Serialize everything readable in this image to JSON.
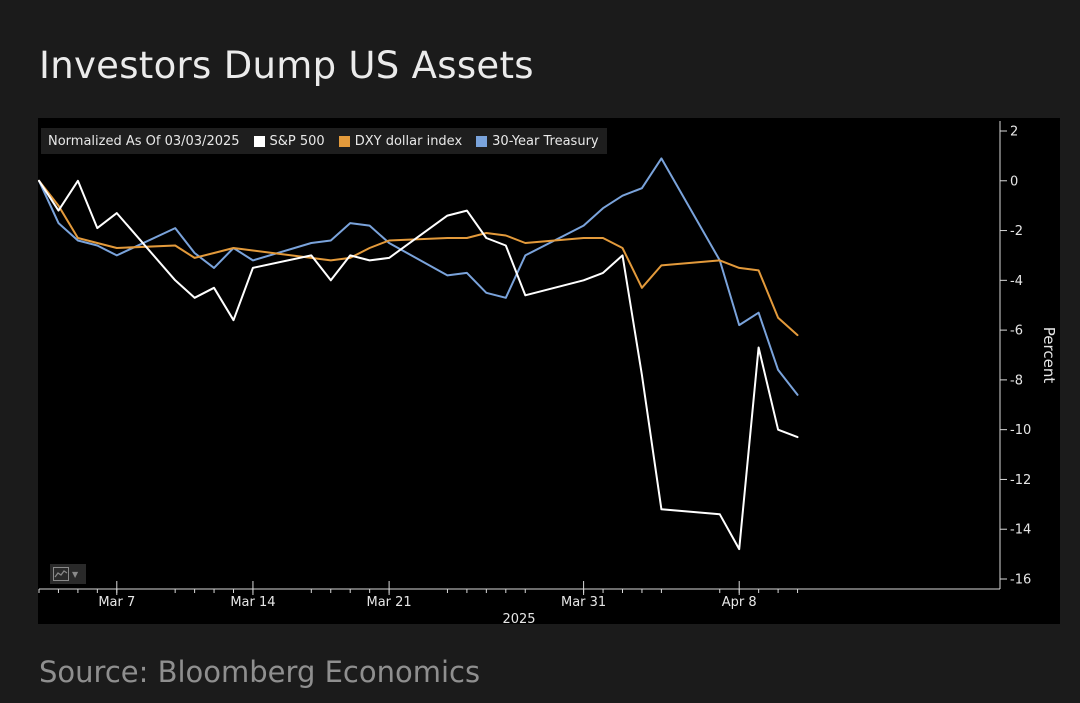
{
  "title": "Investors Dump US Assets",
  "source": "Source: Bloomberg Economics",
  "legend": {
    "note": "Normalized As Of 03/03/2025"
  },
  "toolbar": {
    "chart_type_icon": "line-chart-icon"
  },
  "colors": {
    "background": "#1b1b1b",
    "panel": "#000000",
    "sp500": "#ffffff",
    "dxy": "#e39a3b",
    "treasury": "#7aa3db",
    "axis": "#d9d9d9"
  },
  "chart_data": {
    "type": "line",
    "title": "Investors Dump US Assets",
    "xlabel": "2025",
    "ylabel": "Percent",
    "ylim": [
      -16,
      2
    ],
    "yticks": [
      2,
      0,
      -2,
      -4,
      -6,
      -8,
      -10,
      -12,
      -14,
      -16
    ],
    "y_axis_side": "right",
    "grid": false,
    "legend_position": "top-left",
    "x": [
      "2025-03-03",
      "2025-03-04",
      "2025-03-05",
      "2025-03-06",
      "2025-03-07",
      "2025-03-10",
      "2025-03-11",
      "2025-03-12",
      "2025-03-13",
      "2025-03-14",
      "2025-03-17",
      "2025-03-18",
      "2025-03-19",
      "2025-03-20",
      "2025-03-21",
      "2025-03-24",
      "2025-03-25",
      "2025-03-26",
      "2025-03-27",
      "2025-03-28",
      "2025-03-31",
      "2025-04-01",
      "2025-04-02",
      "2025-04-03",
      "2025-04-04",
      "2025-04-07",
      "2025-04-08",
      "2025-04-09",
      "2025-04-10",
      "2025-04-11"
    ],
    "xtick_labels": [
      {
        "x": "2025-03-07",
        "label": "Mar 7"
      },
      {
        "x": "2025-03-14",
        "label": "Mar 14"
      },
      {
        "x": "2025-03-21",
        "label": "Mar 21"
      },
      {
        "x": "2025-03-31",
        "label": "Mar 31"
      },
      {
        "x": "2025-04-08",
        "label": "Apr 8"
      }
    ],
    "series": [
      {
        "name": "S&P 500",
        "color": "#ffffff",
        "values": [
          0,
          -1.2,
          0,
          -1.9,
          -1.3,
          -4.0,
          -4.7,
          -4.3,
          -5.6,
          -3.5,
          -3.0,
          -4.0,
          -3.0,
          -3.2,
          -3.1,
          -1.4,
          -1.2,
          -2.3,
          -2.6,
          -4.6,
          -4.0,
          -3.7,
          -3.0,
          -7.8,
          -13.2,
          -13.4,
          -14.8,
          -6.7,
          -10.0,
          -10.3
        ]
      },
      {
        "name": "DXY dollar index",
        "color": "#e39a3b",
        "values": [
          0,
          -1.0,
          -2.3,
          -2.5,
          -2.7,
          -2.6,
          -3.1,
          -2.9,
          -2.7,
          -2.8,
          -3.1,
          -3.2,
          -3.1,
          -2.7,
          -2.4,
          -2.3,
          -2.3,
          -2.1,
          -2.2,
          -2.5,
          -2.3,
          -2.3,
          -2.7,
          -4.3,
          -3.4,
          -3.2,
          -3.5,
          -3.6,
          -5.5,
          -6.2
        ]
      },
      {
        "name": "30-Year Treasury",
        "color": "#7aa3db",
        "values": [
          0,
          -1.7,
          -2.4,
          -2.6,
          -3.0,
          -1.9,
          -2.9,
          -3.5,
          -2.7,
          -3.2,
          -2.5,
          -2.4,
          -1.7,
          -1.8,
          -2.5,
          -3.8,
          -3.7,
          -4.5,
          -4.7,
          -3.0,
          -1.8,
          -1.1,
          -0.6,
          -0.3,
          0.9,
          -3.2,
          -5.8,
          -5.3,
          -7.6,
          -8.6
        ]
      }
    ]
  }
}
